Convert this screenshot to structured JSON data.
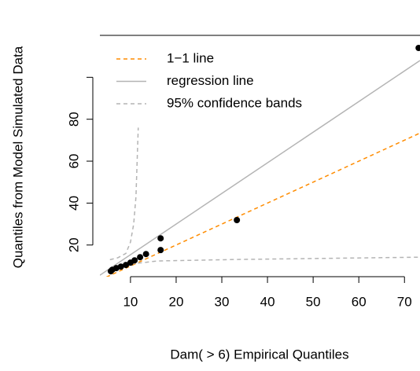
{
  "chart_data": {
    "type": "scatter",
    "x_label": "Dam( > 6) Empirical Quantiles",
    "y_label": "Quantiles from Model Simulated Data",
    "xlim": [
      3.3,
      73.4
    ],
    "ylim": [
      4.9,
      120
    ],
    "xticks": [
      10,
      20,
      30,
      40,
      50,
      60,
      70
    ],
    "yticks": [
      20,
      40,
      60,
      80,
      {
        "value": 100,
        "label": null
      }
    ],
    "series": [
      {
        "color": "#000000",
        "x": [
          5.7,
          6,
          6.9,
          7.9,
          9,
          10,
          10.9,
          12.1,
          13.4,
          16.6,
          16.6,
          33.3,
          73.1
        ],
        "values": [
          7.5,
          8.2,
          9,
          9.7,
          10.5,
          11.6,
          12.7,
          14.2,
          15.7,
          17.6,
          23.2,
          31.9,
          114
        ]
      }
    ],
    "lines": [
      {
        "name": "1−1 line",
        "color": "#ff8c00",
        "linestyle": "dashed",
        "x": [
          3.3,
          73.4
        ],
        "values": [
          3.3,
          73.4
        ]
      },
      {
        "name": "regression line",
        "color": "#b4b4b4",
        "linestyle": "solid",
        "x": [
          3.3,
          73.4
        ],
        "values": [
          5.6,
          108
        ]
      },
      {
        "name": "95% confidence bands",
        "color": "#b4b4b4",
        "linestyle": "dashed",
        "x": [
          5.5,
          7.2,
          9,
          10,
          10.7,
          11.2,
          11.7
        ],
        "values": [
          13,
          13.9,
          16,
          21.4,
          30,
          43,
          76
        ]
      },
      {
        "color": "#b4b4b4",
        "linestyle": "dashed",
        "x": [
          7.2,
          10,
          15.9,
          33.1,
          73.4
        ],
        "values": [
          8.6,
          10.9,
          12.4,
          13.1,
          14.2
        ]
      }
    ]
  }
}
